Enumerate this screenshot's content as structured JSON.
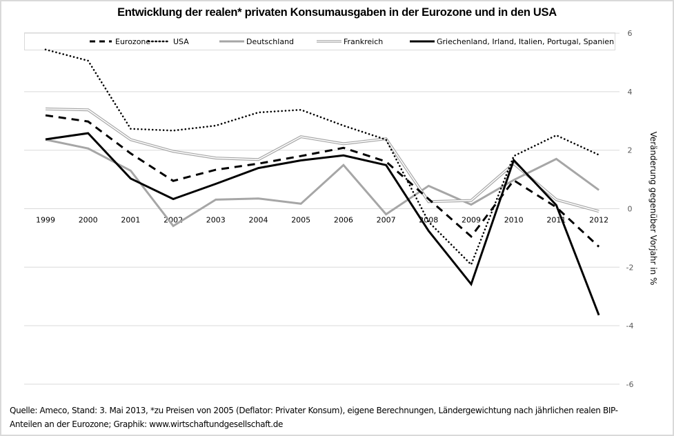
{
  "chart_data": {
    "type": "line",
    "title": "Entwicklung der realen* privaten Konsumausgaben in der Eurozone und in den USA",
    "xlabel": "",
    "ylabel": "Veränderung gegenüber Vorjahr in %",
    "y_axis_position": "right",
    "ylim": [
      -6,
      6
    ],
    "yticks": [
      6,
      4,
      2,
      0,
      -2,
      -4,
      -6
    ],
    "grid": true,
    "legend_position": "top",
    "categories": [
      "1999",
      "2000",
      "2001",
      "2002",
      "2003",
      "2004",
      "2005",
      "2006",
      "2007",
      "2008",
      "2009",
      "2010",
      "2011",
      "2012"
    ],
    "series": [
      {
        "name": "Eurozone",
        "style": "dashed",
        "color": "#000000",
        "values": [
          3.19,
          2.98,
          1.89,
          0.95,
          1.33,
          1.54,
          1.8,
          2.08,
          1.61,
          0.33,
          -0.95,
          0.97,
          0.05,
          -1.3
        ]
      },
      {
        "name": "USA",
        "style": "dotted",
        "color": "#000000",
        "values": [
          5.44,
          5.06,
          2.73,
          2.67,
          2.84,
          3.29,
          3.38,
          2.84,
          2.36,
          -0.45,
          -1.91,
          1.8,
          2.51,
          1.84
        ]
      },
      {
        "name": "Deutschland",
        "style": "solid",
        "color": "#a6a6a6",
        "values": [
          2.36,
          2.06,
          1.3,
          -0.59,
          0.31,
          0.35,
          0.17,
          1.49,
          -0.19,
          0.78,
          0.14,
          0.98,
          1.7,
          0.64
        ]
      },
      {
        "name": "Frankreich",
        "style": "double",
        "color": "#a6a6a6",
        "values": [
          3.41,
          3.38,
          2.36,
          1.96,
          1.73,
          1.68,
          2.46,
          2.22,
          2.39,
          0.24,
          0.28,
          1.54,
          0.31,
          -0.09
        ]
      },
      {
        "name": "Griechenland, Irland, Italien, Portugal, Spanien",
        "style": "solid",
        "color": "#000000",
        "values": [
          2.37,
          2.58,
          1.03,
          0.33,
          0.85,
          1.39,
          1.65,
          1.82,
          1.49,
          -0.76,
          -2.58,
          1.66,
          0.12,
          -3.64
        ]
      }
    ]
  },
  "footer": {
    "source_line1": "Quelle: Ameco, Stand: 3. Mai 2013,  *zu Preisen von 2005 (Deflator: Privater Konsum), eigene Berechnungen,  Ländergewichtung nach jährlichen realen BIP-",
    "source_line2": "Anteilen an der Eurozone; Graphik: www.wirtschaftundgesellschaft.de"
  }
}
